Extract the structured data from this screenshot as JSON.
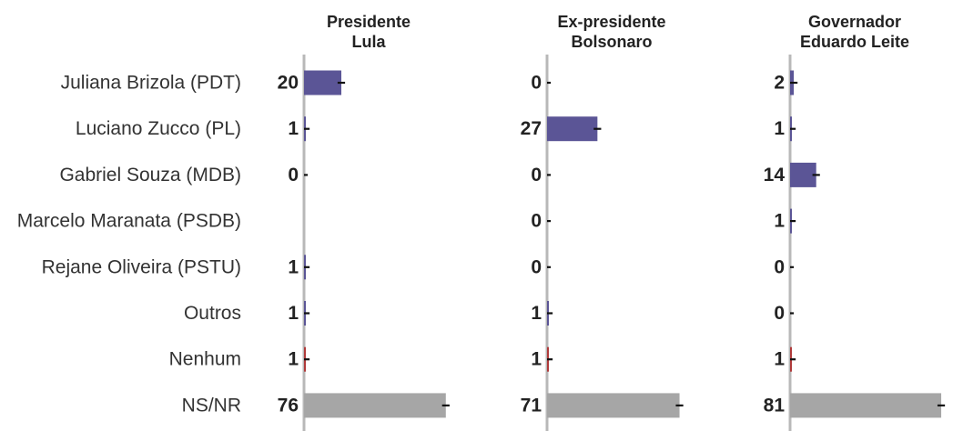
{
  "chart_data": {
    "type": "bar",
    "orientation": "horizontal",
    "categories": [
      "Juliana Brizola (PDT)",
      "Luciano Zucco (PL)",
      "Gabriel Souza (MDB)",
      "Marcelo Maranata (PSDB)",
      "Rejane Oliveira (PSTU)",
      "Outros",
      "Nenhum",
      "NS/NR"
    ],
    "panels": [
      {
        "title": [
          "Presidente",
          "Lula"
        ],
        "values": [
          20,
          1,
          0,
          null,
          1,
          1,
          1,
          76
        ],
        "labels": [
          "20",
          "1",
          "0",
          "",
          "1",
          "1",
          "1",
          "76"
        ]
      },
      {
        "title": [
          "Ex-presidente",
          "Bolsonaro"
        ],
        "values": [
          0,
          27,
          0,
          0,
          0,
          1,
          1,
          71
        ],
        "labels": [
          "0",
          "27",
          "0",
          "0",
          "0",
          "1",
          "1",
          "71"
        ]
      },
      {
        "title": [
          "Governador",
          "Eduardo Leite"
        ],
        "values": [
          2,
          1,
          14,
          1,
          0,
          0,
          1,
          81
        ],
        "labels": [
          "2",
          "1",
          "14",
          "1",
          "0",
          "0",
          "1",
          "81"
        ]
      }
    ],
    "error_margin": 2,
    "xlim": [
      0,
      81
    ],
    "colors": {
      "candidate": "#5b5596",
      "nenhum": "#b03a3a",
      "nsnr": "#a6a6a6",
      "axis": "#b8b8b8",
      "error": "#111111"
    },
    "grid": false,
    "legend": "none"
  }
}
